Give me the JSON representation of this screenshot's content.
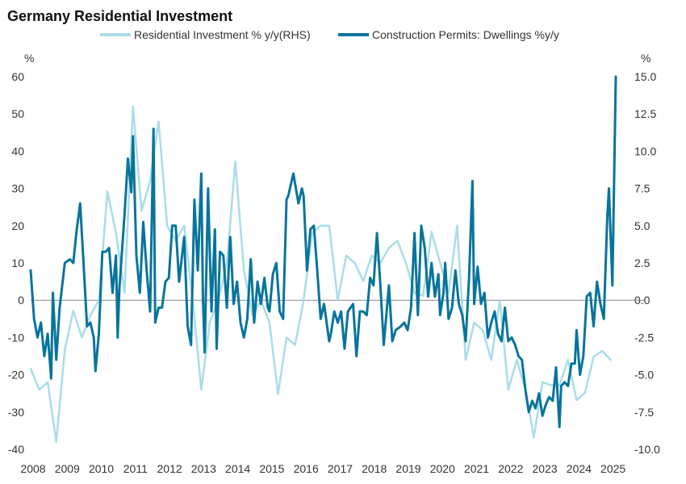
{
  "chart_data": {
    "type": "line",
    "title": "Germany Residential Investment",
    "left_axis": {
      "unit": "%",
      "ylim": [
        -40,
        60
      ],
      "ticks": [
        "60",
        "50",
        "40",
        "30",
        "20",
        "10",
        "0",
        "-10",
        "-20",
        "-30",
        "-40"
      ]
    },
    "right_axis": {
      "unit": "%",
      "ylim": [
        -10,
        15
      ],
      "ticks": [
        "15.0",
        "12.5",
        "10.0",
        "7.5",
        "5.0",
        "2.5",
        "0.0",
        "-2.5",
        "-5.0",
        "-7.5",
        "-10.0"
      ]
    },
    "x_ticks": [
      "2008",
      "2009",
      "2010",
      "2011",
      "2012",
      "2013",
      "2014",
      "2015",
      "2016",
      "2017",
      "2018",
      "2019",
      "2020",
      "2021",
      "2022",
      "2023",
      "2024",
      "2025"
    ],
    "xlim": [
      2008.0,
      2025.6
    ],
    "legend_position": "top",
    "zero_line": true,
    "series": [
      {
        "name": "Residential Investment % y/y(RHS)",
        "axis": "right",
        "color": "#a9dde8",
        "points": [
          [
            2008.0,
            -4.6
          ],
          [
            2008.25,
            -6.0
          ],
          [
            2008.5,
            -5.5
          ],
          [
            2008.75,
            -9.5
          ],
          [
            2009.0,
            -3.3
          ],
          [
            2009.25,
            -0.7
          ],
          [
            2009.5,
            -2.5
          ],
          [
            2009.75,
            -1.0
          ],
          [
            2010.0,
            0.0
          ],
          [
            2010.25,
            7.3
          ],
          [
            2010.5,
            4.5
          ],
          [
            2010.75,
            0.5
          ],
          [
            2011.0,
            13.0
          ],
          [
            2011.25,
            6.0
          ],
          [
            2011.5,
            8.0
          ],
          [
            2011.75,
            12.0
          ],
          [
            2012.0,
            5.0
          ],
          [
            2012.25,
            4.0
          ],
          [
            2012.5,
            5.0
          ],
          [
            2012.75,
            0.0
          ],
          [
            2013.0,
            -6.0
          ],
          [
            2013.25,
            -1.5
          ],
          [
            2013.5,
            0.0
          ],
          [
            2013.75,
            2.5
          ],
          [
            2014.0,
            9.3
          ],
          [
            2014.25,
            2.0
          ],
          [
            2014.5,
            -1.0
          ],
          [
            2014.75,
            0.0
          ],
          [
            2015.0,
            -1.5
          ],
          [
            2015.25,
            -6.3
          ],
          [
            2015.5,
            -2.5
          ],
          [
            2015.75,
            -3.0
          ],
          [
            2016.0,
            0.0
          ],
          [
            2016.25,
            4.5
          ],
          [
            2016.5,
            5.0
          ],
          [
            2016.75,
            5.0
          ],
          [
            2017.0,
            0.0
          ],
          [
            2017.25,
            3.0
          ],
          [
            2017.5,
            2.5
          ],
          [
            2017.75,
            1.3
          ],
          [
            2018.0,
            3.0
          ],
          [
            2018.25,
            2.5
          ],
          [
            2018.5,
            3.5
          ],
          [
            2018.75,
            4.0
          ],
          [
            2019.0,
            2.5
          ],
          [
            2019.25,
            0.5
          ],
          [
            2019.5,
            0.3
          ],
          [
            2019.75,
            4.6
          ],
          [
            2020.0,
            2.5
          ],
          [
            2020.25,
            0.5
          ],
          [
            2020.5,
            5.0
          ],
          [
            2020.75,
            -4.0
          ],
          [
            2021.0,
            -1.5
          ],
          [
            2021.25,
            -2.0
          ],
          [
            2021.5,
            -4.0
          ],
          [
            2021.75,
            0.0
          ],
          [
            2022.0,
            -6.0
          ],
          [
            2022.25,
            -4.0
          ],
          [
            2022.5,
            -6.0
          ],
          [
            2022.75,
            -9.2
          ],
          [
            2023.0,
            -5.5
          ],
          [
            2023.25,
            -5.7
          ],
          [
            2023.5,
            -5.7
          ],
          [
            2023.75,
            -4.0
          ],
          [
            2024.0,
            -6.7
          ],
          [
            2024.25,
            -6.2
          ],
          [
            2024.5,
            -3.8
          ],
          [
            2024.75,
            -3.4
          ],
          [
            2025.0,
            -4.0
          ]
        ]
      },
      {
        "name": "Construction Permits: Dwellings %y/y",
        "axis": "left",
        "color": "#08749c",
        "points": [
          [
            2008.0,
            8
          ],
          [
            2008.1,
            -5
          ],
          [
            2008.2,
            -10
          ],
          [
            2008.3,
            -6
          ],
          [
            2008.4,
            -15
          ],
          [
            2008.5,
            -9
          ],
          [
            2008.6,
            -21
          ],
          [
            2008.65,
            2
          ],
          [
            2008.75,
            -16
          ],
          [
            2008.85,
            -2
          ],
          [
            2009.0,
            10
          ],
          [
            2009.15,
            11
          ],
          [
            2009.25,
            10
          ],
          [
            2009.35,
            19
          ],
          [
            2009.45,
            26
          ],
          [
            2009.55,
            10
          ],
          [
            2009.65,
            -7
          ],
          [
            2009.75,
            -6
          ],
          [
            2009.85,
            -10
          ],
          [
            2009.9,
            -19
          ],
          [
            2010.0,
            -9
          ],
          [
            2010.1,
            13
          ],
          [
            2010.2,
            13
          ],
          [
            2010.3,
            14
          ],
          [
            2010.4,
            2
          ],
          [
            2010.5,
            12
          ],
          [
            2010.55,
            -10
          ],
          [
            2010.6,
            3
          ],
          [
            2010.75,
            23
          ],
          [
            2010.85,
            38
          ],
          [
            2010.95,
            29
          ],
          [
            2011.0,
            44
          ],
          [
            2011.1,
            12
          ],
          [
            2011.2,
            2
          ],
          [
            2011.3,
            21
          ],
          [
            2011.4,
            8
          ],
          [
            2011.5,
            -3
          ],
          [
            2011.6,
            46
          ],
          [
            2011.65,
            -6
          ],
          [
            2011.75,
            -2
          ],
          [
            2011.85,
            -2
          ],
          [
            2011.95,
            5
          ],
          [
            2012.05,
            6
          ],
          [
            2012.15,
            20
          ],
          [
            2012.25,
            20
          ],
          [
            2012.35,
            5
          ],
          [
            2012.5,
            17
          ],
          [
            2012.6,
            -7
          ],
          [
            2012.7,
            -12
          ],
          [
            2012.8,
            27
          ],
          [
            2012.9,
            8
          ],
          [
            2013.0,
            34
          ],
          [
            2013.05,
            0
          ],
          [
            2013.1,
            -14
          ],
          [
            2013.2,
            30
          ],
          [
            2013.3,
            -3
          ],
          [
            2013.4,
            19
          ],
          [
            2013.45,
            -13
          ],
          [
            2013.55,
            13
          ],
          [
            2013.65,
            12
          ],
          [
            2013.75,
            -2
          ],
          [
            2013.85,
            17
          ],
          [
            2013.95,
            -1
          ],
          [
            2014.05,
            5
          ],
          [
            2014.15,
            -6
          ],
          [
            2014.25,
            -10
          ],
          [
            2014.35,
            -5
          ],
          [
            2014.45,
            11
          ],
          [
            2014.55,
            -6
          ],
          [
            2014.65,
            5
          ],
          [
            2014.75,
            -1
          ],
          [
            2014.85,
            6
          ],
          [
            2014.95,
            -2
          ],
          [
            2015.0,
            -3
          ],
          [
            2015.1,
            7
          ],
          [
            2015.2,
            10
          ],
          [
            2015.3,
            -3
          ],
          [
            2015.4,
            -5
          ],
          [
            2015.5,
            27
          ],
          [
            2015.55,
            28
          ],
          [
            2015.7,
            34
          ],
          [
            2015.85,
            26
          ],
          [
            2015.95,
            30
          ],
          [
            2016.0,
            28
          ],
          [
            2016.1,
            8
          ],
          [
            2016.2,
            19
          ],
          [
            2016.3,
            20
          ],
          [
            2016.4,
            8
          ],
          [
            2016.5,
            -5
          ],
          [
            2016.6,
            -1
          ],
          [
            2016.75,
            -11
          ],
          [
            2016.8,
            -9
          ],
          [
            2016.9,
            -3
          ],
          [
            2017.0,
            -6
          ],
          [
            2017.1,
            -3
          ],
          [
            2017.2,
            -13
          ],
          [
            2017.3,
            -3
          ],
          [
            2017.45,
            -1
          ],
          [
            2017.55,
            -15
          ],
          [
            2017.65,
            -3
          ],
          [
            2017.75,
            -3
          ],
          [
            2017.85,
            -4
          ],
          [
            2017.95,
            6
          ],
          [
            2018.05,
            4
          ],
          [
            2018.15,
            18
          ],
          [
            2018.25,
            4
          ],
          [
            2018.35,
            -12
          ],
          [
            2018.5,
            4
          ],
          [
            2018.6,
            -11
          ],
          [
            2018.7,
            -8
          ],
          [
            2018.85,
            -7
          ],
          [
            2018.95,
            -6
          ],
          [
            2019.05,
            -8
          ],
          [
            2019.15,
            -2
          ],
          [
            2019.25,
            18
          ],
          [
            2019.35,
            -4
          ],
          [
            2019.45,
            20
          ],
          [
            2019.55,
            14
          ],
          [
            2019.65,
            1
          ],
          [
            2019.75,
            10
          ],
          [
            2019.85,
            1
          ],
          [
            2019.95,
            7
          ],
          [
            2020.0,
            -4
          ],
          [
            2020.1,
            2
          ],
          [
            2020.15,
            10
          ],
          [
            2020.25,
            -5
          ],
          [
            2020.35,
            -2
          ],
          [
            2020.45,
            8
          ],
          [
            2020.55,
            -1
          ],
          [
            2020.65,
            -4
          ],
          [
            2020.75,
            -11
          ],
          [
            2020.85,
            6
          ],
          [
            2020.95,
            32
          ],
          [
            2021.0,
            -1
          ],
          [
            2021.1,
            9
          ],
          [
            2021.2,
            -1
          ],
          [
            2021.3,
            2
          ],
          [
            2021.4,
            -10
          ],
          [
            2021.5,
            -6
          ],
          [
            2021.6,
            -3
          ],
          [
            2021.7,
            -9
          ],
          [
            2021.8,
            -11
          ],
          [
            2021.9,
            -2
          ],
          [
            2022.0,
            -11
          ],
          [
            2022.1,
            -10
          ],
          [
            2022.2,
            -12
          ],
          [
            2022.3,
            -15
          ],
          [
            2022.4,
            -16
          ],
          [
            2022.5,
            -24
          ],
          [
            2022.6,
            -30
          ],
          [
            2022.7,
            -27
          ],
          [
            2022.8,
            -29
          ],
          [
            2022.9,
            -25
          ],
          [
            2023.0,
            -31
          ],
          [
            2023.1,
            -28
          ],
          [
            2023.2,
            -26
          ],
          [
            2023.3,
            -27
          ],
          [
            2023.4,
            -18
          ],
          [
            2023.5,
            -34
          ],
          [
            2023.55,
            -23
          ],
          [
            2023.65,
            -22
          ],
          [
            2023.75,
            -23
          ],
          [
            2023.85,
            -17
          ],
          [
            2023.95,
            -17
          ],
          [
            2024.0,
            -8
          ],
          [
            2024.1,
            -20
          ],
          [
            2024.2,
            -15
          ],
          [
            2024.3,
            1
          ],
          [
            2024.4,
            2
          ],
          [
            2024.5,
            -7
          ],
          [
            2024.6,
            5
          ],
          [
            2024.7,
            -1
          ],
          [
            2024.8,
            -5
          ],
          [
            2024.9,
            22
          ],
          [
            2024.95,
            30
          ],
          [
            2025.05,
            4
          ],
          [
            2025.15,
            60
          ]
        ]
      }
    ]
  }
}
